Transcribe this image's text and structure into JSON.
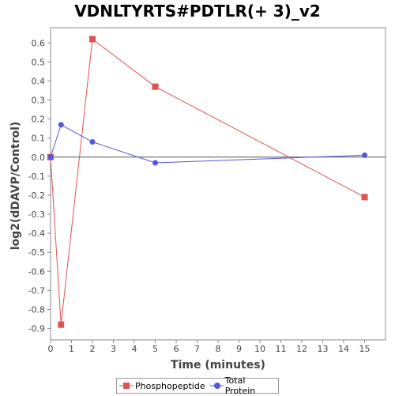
{
  "chart_data": {
    "type": "line",
    "title": "VDNLTYRTS#PDTLR(+ 3)_v2",
    "xlabel": "Time (minutes)",
    "ylabel": "log2(dDAVP/Control)",
    "xlim": [
      0,
      16
    ],
    "ylim": [
      -0.96,
      0.68
    ],
    "x_ticks": [
      0,
      1,
      2,
      3,
      4,
      5,
      6,
      7,
      8,
      9,
      10,
      11,
      12,
      13,
      14,
      15
    ],
    "y_ticks": [
      0.6,
      0.5,
      0.4,
      0.3,
      0.2,
      0.1,
      0.0,
      -0.1,
      -0.2,
      -0.3,
      -0.4,
      -0.5,
      -0.6,
      -0.7,
      -0.8,
      -0.9
    ],
    "y_tick_labels": [
      "0.6",
      "0.5",
      "0.4",
      "0.3",
      "0.2",
      "0.1",
      "0.0",
      "-0.1",
      "-0.2",
      "-0.3",
      "-0.4",
      "-0.5",
      "-0.6",
      "-0.7",
      "-0.8",
      "-0.9"
    ],
    "zero_line": true,
    "grid": false,
    "legend_position": "bottom",
    "series": [
      {
        "name": "Phosphopeptide",
        "color": "#e05252",
        "marker": "square",
        "x": [
          0,
          0.5,
          2,
          5,
          15
        ],
        "y": [
          0.0,
          -0.88,
          0.62,
          0.37,
          -0.21
        ]
      },
      {
        "name": "Total Protein",
        "color": "#5555e0",
        "marker": "circle",
        "x": [
          0,
          0.5,
          2,
          5,
          15
        ],
        "y": [
          0.0,
          0.17,
          0.08,
          -0.03,
          0.01
        ]
      }
    ]
  }
}
